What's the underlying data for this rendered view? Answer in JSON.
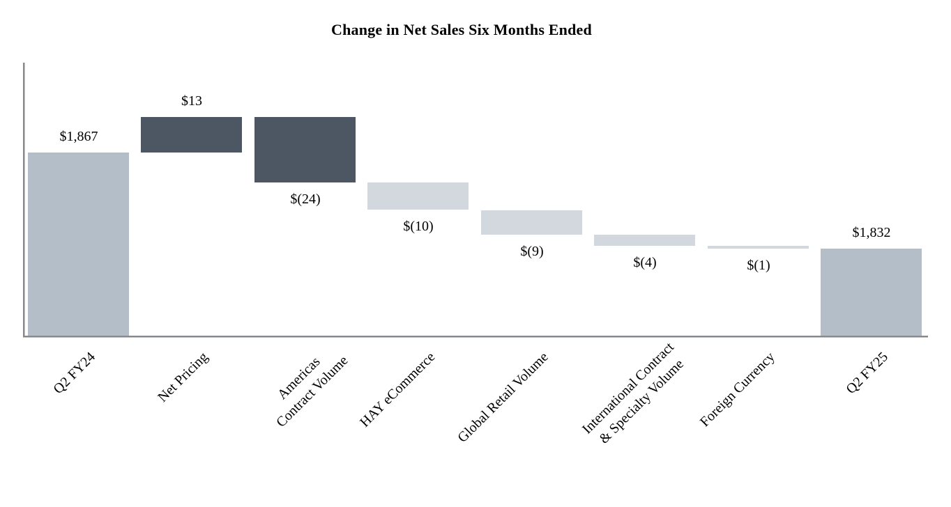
{
  "chart_data": {
    "type": "bar",
    "subtype": "waterfall",
    "title": "Change in Net Sales Six Months Ended",
    "xlabel": "",
    "ylabel": "",
    "ylim": [
      1800,
      1900
    ],
    "grid": false,
    "legend": false,
    "axis_tick_labels_shown": false,
    "categories": [
      "Q2 FY24",
      "Net Pricing",
      "Americas\nContract Volume",
      "HAY eCommerce",
      "Global Retail Volume",
      "International Contract\n& Specialty Volume",
      "Foreign Currency",
      "Q2 FY25"
    ],
    "steps": [
      {
        "category": "Q2 FY24",
        "value_label": "$1,867",
        "value": 1867,
        "kind": "total",
        "start": 0,
        "end": 1867,
        "palette": "total"
      },
      {
        "category": "Net Pricing",
        "value_label": "$13",
        "value": 13,
        "kind": "increase",
        "start": 1867,
        "end": 1880,
        "palette": "dark"
      },
      {
        "category": "Americas\nContract Volume",
        "value_label": "$(24)",
        "value": -24,
        "kind": "decrease",
        "start": 1880,
        "end": 1856,
        "palette": "dark"
      },
      {
        "category": "HAY eCommerce",
        "value_label": "$(10)",
        "value": -10,
        "kind": "decrease",
        "start": 1856,
        "end": 1846,
        "palette": "light"
      },
      {
        "category": "Global Retail Volume",
        "value_label": "$(9)",
        "value": -9,
        "kind": "decrease",
        "start": 1846,
        "end": 1837,
        "palette": "light"
      },
      {
        "category": "International Contract\n& Specialty Volume",
        "value_label": "$(4)",
        "value": -4,
        "kind": "decrease",
        "start": 1837,
        "end": 1833,
        "palette": "light"
      },
      {
        "category": "Foreign Currency",
        "value_label": "$(1)",
        "value": -1,
        "kind": "decrease",
        "start": 1833,
        "end": 1832,
        "palette": "light"
      },
      {
        "category": "Q2 FY25",
        "value_label": "$1,832",
        "value": 1832,
        "kind": "total",
        "start": 0,
        "end": 1832,
        "palette": "total"
      }
    ],
    "colors": {
      "total": "#b4bec8",
      "dark": "#4d5763",
      "light": "#d2d8dd",
      "axis": "#87898c"
    }
  }
}
